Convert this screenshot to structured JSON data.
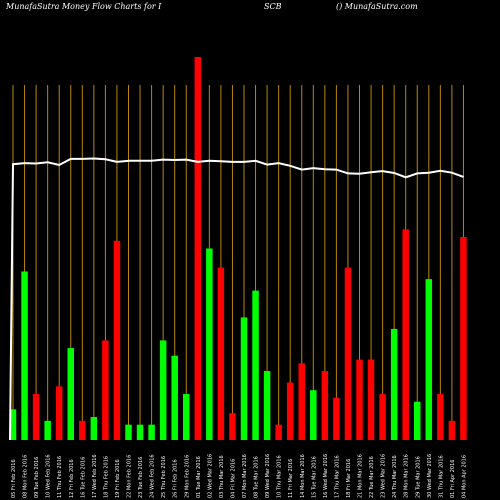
{
  "header": {
    "left": "MunafaSutra  Money Flow  Charts for I",
    "middle": "SCB",
    "right": "() MunafaSutra.com"
  },
  "chart_data": {
    "type": "bar",
    "title": "MunafaSutra  Money Flow  Charts for ISCB",
    "ylim": [
      0,
      100
    ],
    "categories": [
      "05 Fri Feb 2016",
      "08 Mon Feb 2016",
      "09 Tue Feb 2016",
      "10 Wed Feb 2016",
      "11 Thu Feb 2016",
      "12 Fri Feb 2016",
      "16 Tue Feb 2016",
      "17 Wed Feb 2016",
      "18 Thu Feb 2016",
      "19 Fri Feb 2016",
      "22 Mon Feb 2016",
      "23 Tue Feb 2016",
      "24 Wed Feb 2016",
      "25 Thu Feb 2016",
      "26 Fri Feb 2016",
      "29 Mon Feb 2016",
      "01 Tue Mar 2016",
      "02 Wed Mar 2016",
      "03 Thu Mar 2016",
      "04 Fri Mar 2016",
      "07 Mon Mar 2016",
      "08 Tue Mar 2016",
      "09 Wed Mar 2016",
      "10 Thu Mar 2016",
      "11 Fri Mar 2016",
      "14 Mon Mar 2016",
      "15 Tue Mar 2016",
      "16 Wed Mar 2016",
      "17 Thu Mar 2016",
      "18 Fri Mar 2016",
      "21 Mon Mar 2016",
      "22 Tue Mar 2016",
      "23 Wed Mar 2016",
      "24 Thu Mar 2016",
      "28 Mon Mar 2016",
      "29 Tue Mar 2016",
      "30 Wed Mar 2016",
      "31 Thu Mar 2016",
      "01 Fri Apr 2016",
      "04 Mon Apr 2016"
    ],
    "bars": [
      {
        "value": 8,
        "color": "green"
      },
      {
        "value": 44,
        "color": "green"
      },
      {
        "value": 12,
        "color": "red"
      },
      {
        "value": 5,
        "color": "green"
      },
      {
        "value": 14,
        "color": "red"
      },
      {
        "value": 24,
        "color": "green"
      },
      {
        "value": 5,
        "color": "red"
      },
      {
        "value": 6,
        "color": "green"
      },
      {
        "value": 26,
        "color": "red"
      },
      {
        "value": 52,
        "color": "red"
      },
      {
        "value": 4,
        "color": "green"
      },
      {
        "value": 4,
        "color": "green"
      },
      {
        "value": 4,
        "color": "green"
      },
      {
        "value": 26,
        "color": "green"
      },
      {
        "value": 22,
        "color": "green"
      },
      {
        "value": 12,
        "color": "green"
      },
      {
        "value": 100,
        "color": "red"
      },
      {
        "value": 50,
        "color": "green"
      },
      {
        "value": 45,
        "color": "red"
      },
      {
        "value": 7,
        "color": "red"
      },
      {
        "value": 32,
        "color": "green"
      },
      {
        "value": 39,
        "color": "green"
      },
      {
        "value": 18,
        "color": "green"
      },
      {
        "value": 4,
        "color": "red"
      },
      {
        "value": 15,
        "color": "red"
      },
      {
        "value": 20,
        "color": "red"
      },
      {
        "value": 13,
        "color": "green"
      },
      {
        "value": 18,
        "color": "red"
      },
      {
        "value": 11,
        "color": "red"
      },
      {
        "value": 45,
        "color": "red"
      },
      {
        "value": 21,
        "color": "red"
      },
      {
        "value": 21,
        "color": "red"
      },
      {
        "value": 12,
        "color": "red"
      },
      {
        "value": 29,
        "color": "green"
      },
      {
        "value": 55,
        "color": "red"
      },
      {
        "value": 10,
        "color": "green"
      },
      {
        "value": 42,
        "color": "green"
      },
      {
        "value": 12,
        "color": "red"
      },
      {
        "value": 5,
        "color": "red"
      },
      {
        "value": 53,
        "color": "red"
      }
    ],
    "line": [
      72,
      72.3,
      72.2,
      72.5,
      71.8,
      73.4,
      73.4,
      73.5,
      73.3,
      72.6,
      72.9,
      72.9,
      72.9,
      73.2,
      73.1,
      73.2,
      72.6,
      72.9,
      72.8,
      72.6,
      72.6,
      72.9,
      71.9,
      72.3,
      71.6,
      70.6,
      71,
      70.7,
      70.6,
      69.6,
      69.5,
      69.9,
      70.2,
      69.7,
      68.6,
      69.6,
      69.8,
      70.3,
      69.8,
      68.7
    ],
    "line_start": 0,
    "colors": {
      "background": "#000000",
      "green": "#00ff00",
      "red": "#ff0000",
      "grid": "#b8860b",
      "line": "#ffffff",
      "text": "#ffffff"
    }
  }
}
